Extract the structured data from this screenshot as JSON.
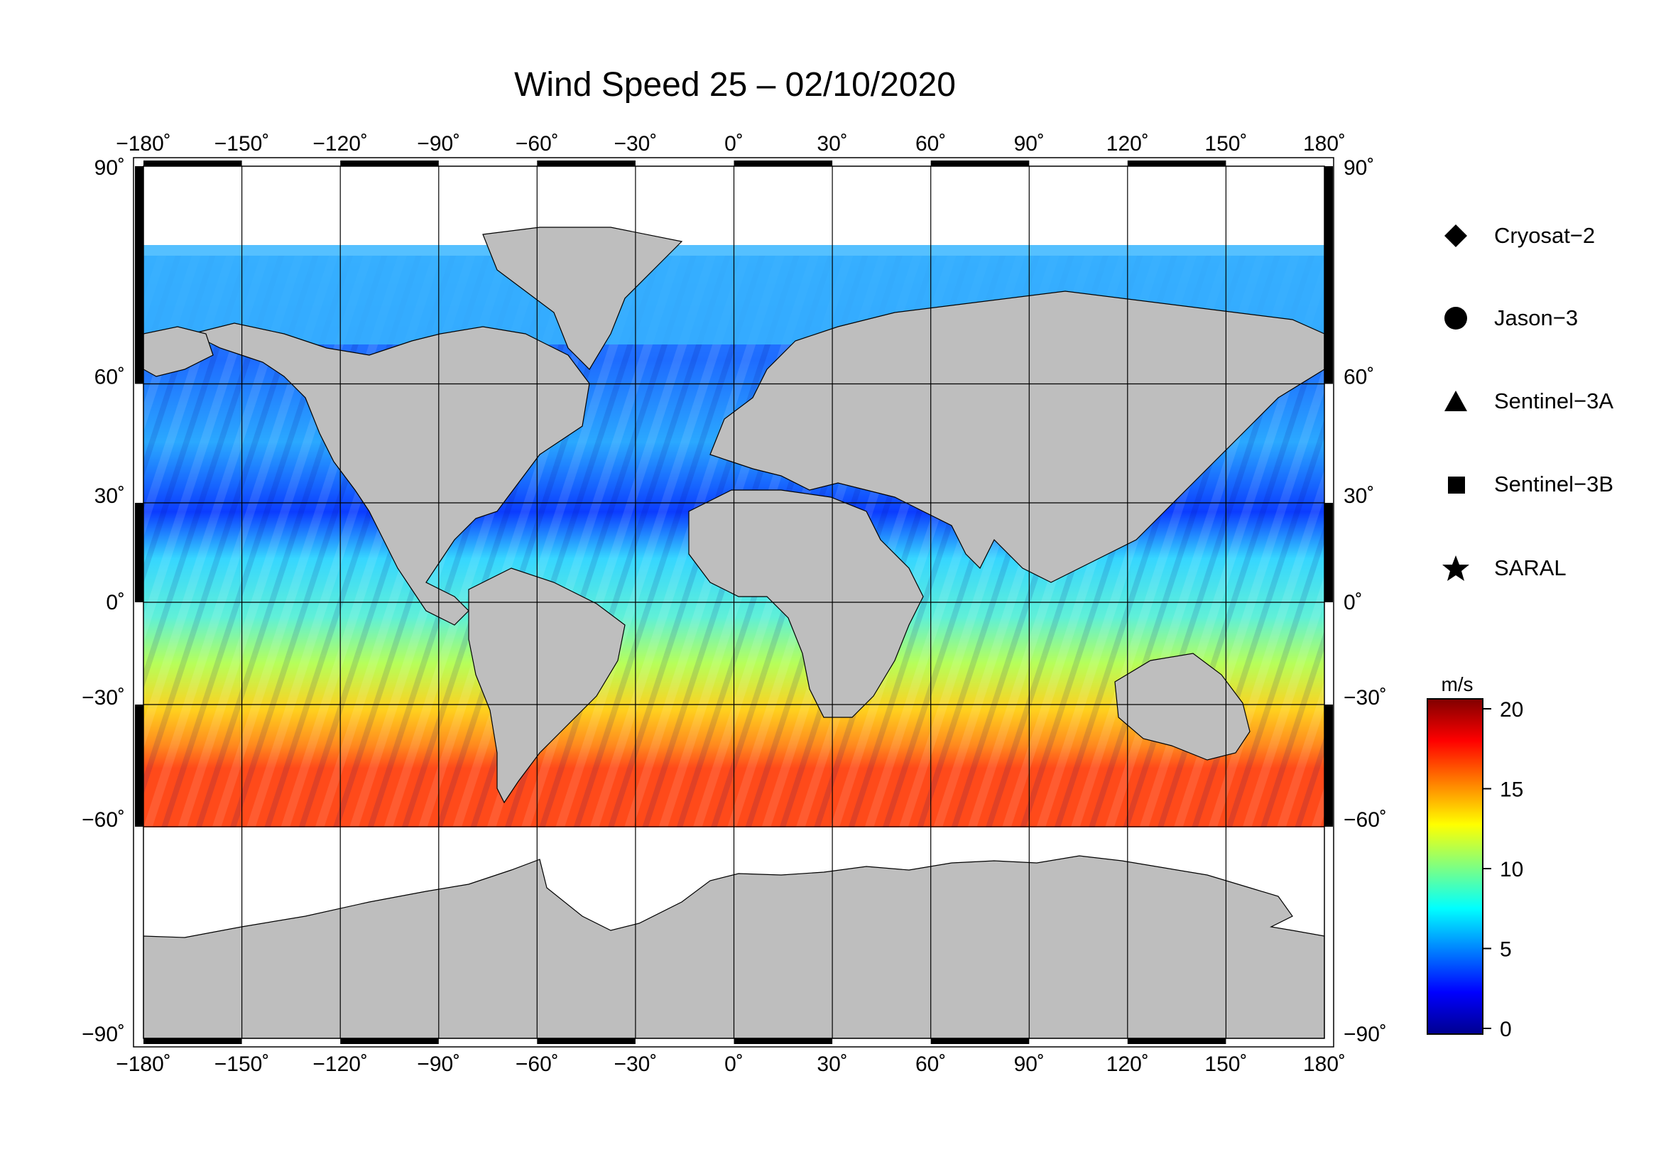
{
  "title": "Wind Speed 25 – 02/10/2020",
  "map": {
    "lon_ticks": [
      "−180˚",
      "−150˚",
      "−120˚",
      "−90˚",
      "−60˚",
      "−30˚",
      "0˚",
      "30˚",
      "60˚",
      "90˚",
      "120˚",
      "150˚",
      "180˚"
    ],
    "lat_ticks_left": [
      "90˚",
      "60˚",
      "30˚",
      "0˚",
      "−30˚",
      "−60˚",
      "−90˚"
    ],
    "lat_ticks_right": [
      "90˚",
      "60˚",
      "30˚",
      "0˚",
      "−30˚",
      "−60˚",
      "−90˚"
    ],
    "land_color": "#bebebe",
    "ice_color": "#ffffff"
  },
  "legend": [
    {
      "label": "Cryosat−2",
      "icon": "diamond-icon"
    },
    {
      "label": "Jason−3",
      "icon": "circle-icon"
    },
    {
      "label": "Sentinel−3A",
      "icon": "triangle-icon"
    },
    {
      "label": "Sentinel−3B",
      "icon": "square-icon"
    },
    {
      "label": "SARAL",
      "icon": "star-icon"
    }
  ],
  "colorbar": {
    "unit": "m/s",
    "min": 0,
    "max": 20,
    "ticks": [
      "20",
      "15",
      "10",
      "5",
      "0"
    ],
    "colors": [
      "#00008f",
      "#0000ff",
      "#0080ff",
      "#00ffff",
      "#80ff80",
      "#ffff00",
      "#ff8000",
      "#ff0000",
      "#800000"
    ]
  }
}
